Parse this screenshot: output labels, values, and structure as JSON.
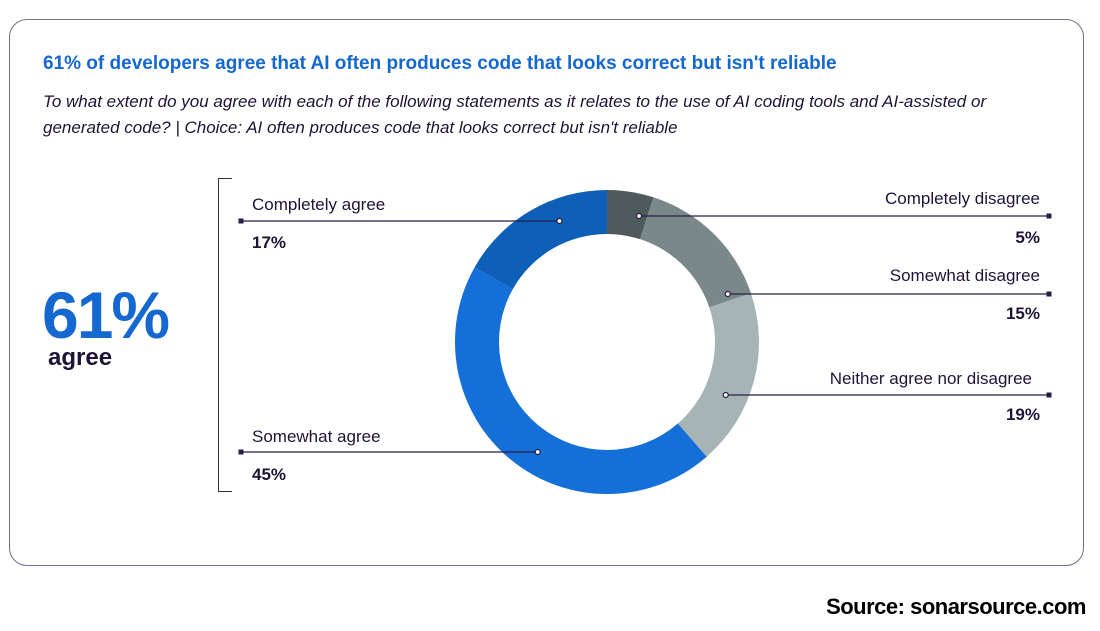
{
  "card": {
    "title": "61% of developers agree that AI often produces code that looks correct but isn't reliable",
    "subtitle": "To what extent do you agree with each of the following statements as it relates to the use of AI coding tools and AI-assisted or generated code? | Choice: AI often produces code that looks correct but isn't reliable"
  },
  "summary": {
    "value": "61%",
    "label": "agree"
  },
  "chart_data": {
    "type": "pie",
    "variant": "donut",
    "title": "61% of developers agree that AI often produces code that looks correct but isn't reliable",
    "slices": [
      {
        "label": "Completely disagree",
        "value": 5,
        "display": "5%",
        "color": "#4f5a5c"
      },
      {
        "label": "Somewhat disagree",
        "value": 15,
        "display": "15%",
        "color": "#7a8889"
      },
      {
        "label": "Neither agree nor disagree",
        "value": 19,
        "display": "19%",
        "color": "#a7b4b6"
      },
      {
        "label": "Somewhat agree",
        "value": 45,
        "display": "45%",
        "color": "#1470d8"
      },
      {
        "label": "Completely agree",
        "value": 17,
        "display": "17%",
        "color": "#0d5fb8"
      }
    ],
    "start": "top",
    "direction": "clockwise"
  },
  "footer": {
    "source": "Source: sonarsource.com"
  }
}
